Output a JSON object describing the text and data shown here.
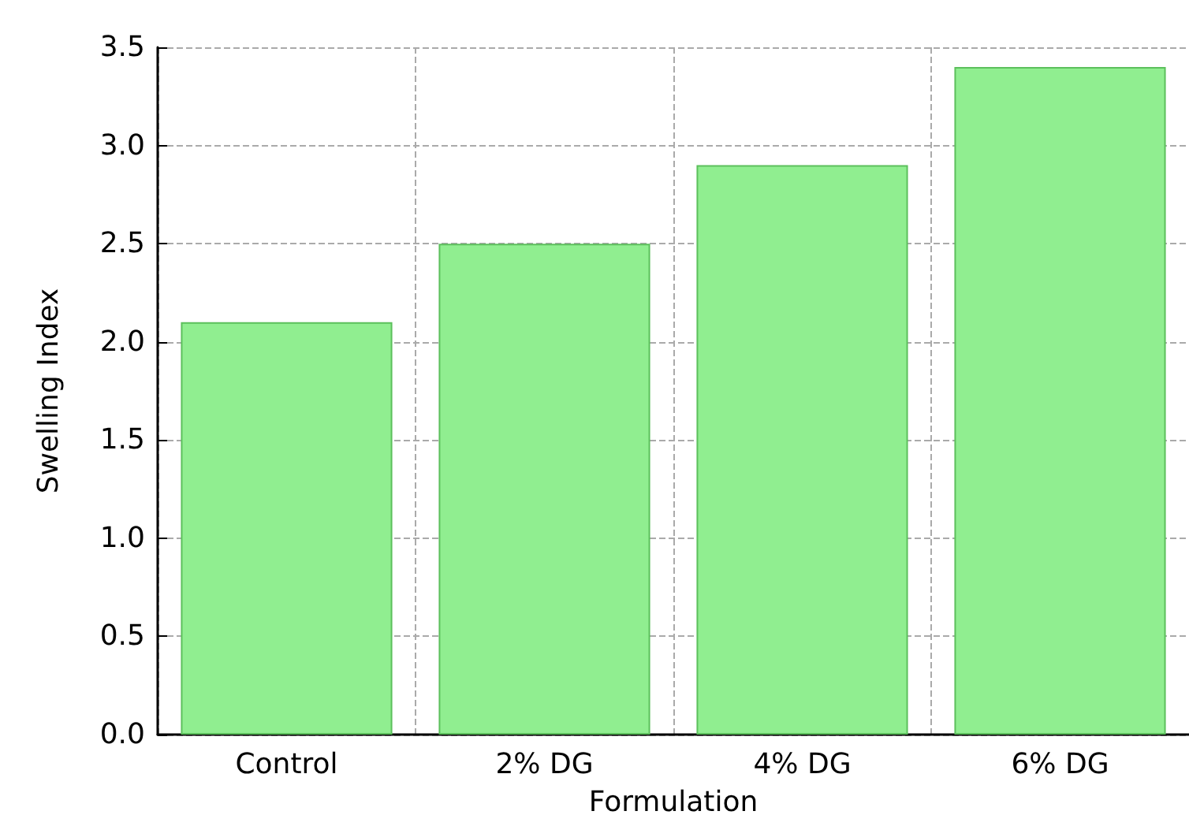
{
  "chart_data": {
    "type": "bar",
    "xlabel": "Formulation",
    "ylabel": "Swelling Index",
    "categories": [
      "Control",
      "2% DG",
      "4% DG",
      "6% DG"
    ],
    "series": [
      {
        "color": "#90ee90",
        "values": [
          2.1,
          2.5,
          2.9,
          3.4
        ]
      }
    ],
    "ylim": [
      0,
      3.5
    ],
    "yticks": [
      {
        "value": 0,
        "label": "0.0"
      },
      0.5,
      {
        "value": 1,
        "label": "1.0"
      },
      1.5,
      {
        "value": 2,
        "label": "2.0"
      },
      2.5,
      {
        "value": 3,
        "label": "3.0"
      },
      3.5
    ],
    "grid": true
  }
}
